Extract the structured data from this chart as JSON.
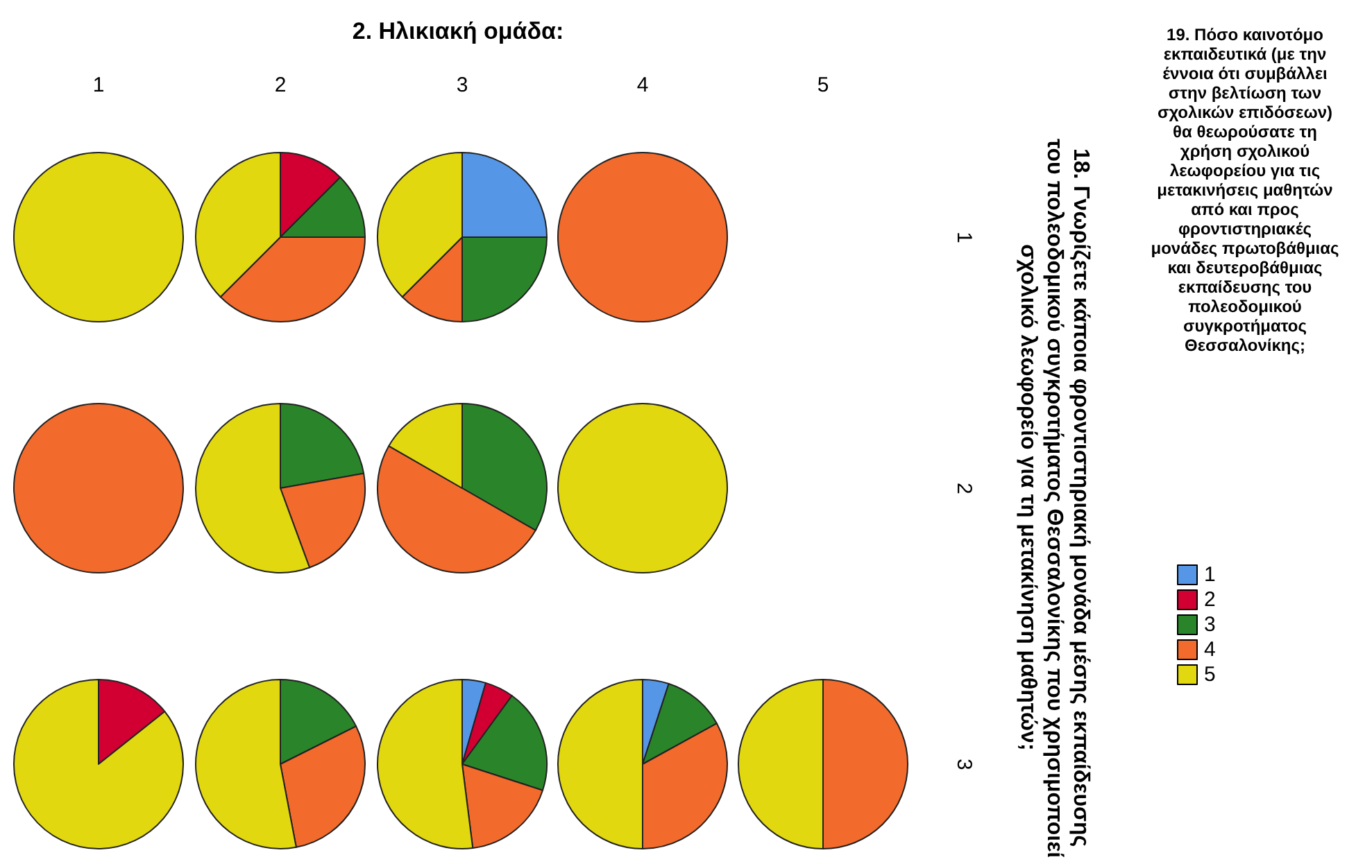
{
  "chart_data": [
    {
      "type": "other",
      "title": "2. Ηλικιακή ομάδα:",
      "y2label": "18. Γνωρίζετε κάποια φροντιστηριακή μονάδα μέσης εκπαίδευσης του πολεοδομικού συγκροτήματος Θεσσαλονίκης που χρησιμοποιεί σχολικό λεωφορείο για τη μετακίνηση μαθητών;"
    },
    {
      "type": "pie",
      "xlabel": "1",
      "values": [
        100
      ],
      "colors": [
        "#e2d810"
      ]
    },
    {
      "type": "pie",
      "xlabel": "2",
      "values": [
        12.5,
        12.5,
        37.5,
        37.5
      ],
      "colors": [
        "#d20032",
        "#2a852a",
        "#f26a2c",
        "#e2d810"
      ]
    },
    {
      "type": "pie",
      "xlabel": "3",
      "values": [
        25,
        25,
        12.5,
        37.5
      ],
      "colors": [
        "#5596e6",
        "#2a852a",
        "#f26a2c",
        "#e2d810"
      ]
    },
    {
      "type": "pie",
      "xlabel": "4",
      "ylabel": "1",
      "values": [
        100
      ],
      "colors": [
        "#f26a2c"
      ]
    },
    {
      "type": "pie",
      "values": [
        100
      ],
      "colors": [
        "#f26a2c"
      ]
    },
    {
      "type": "pie",
      "values": [
        22.2,
        22.2,
        55.6
      ],
      "colors": [
        "#2a852a",
        "#f26a2c",
        "#e2d810"
      ]
    },
    {
      "type": "pie",
      "values": [
        33.3,
        50,
        16.7
      ],
      "colors": [
        "#2a852a",
        "#f26a2c",
        "#e2d810"
      ]
    },
    {
      "type": "pie",
      "ylabel": "2",
      "values": [
        100
      ],
      "colors": [
        "#e2d810"
      ]
    },
    {
      "type": "pie",
      "values": [
        14.3,
        85.7
      ],
      "colors": [
        "#d20032",
        "#e2d810"
      ]
    },
    {
      "type": "pie",
      "values": [
        17.6,
        29.4,
        53
      ],
      "colors": [
        "#2a852a",
        "#f26a2c",
        "#e2d810"
      ]
    },
    {
      "type": "pie",
      "categories": [
        "1",
        "2",
        "3",
        "4",
        "5"
      ],
      "values": [
        4.5,
        5.5,
        20,
        18,
        52
      ],
      "colors": [
        "#5596e6",
        "#d20032",
        "#2a852a",
        "#f26a2c",
        "#e2d810"
      ],
      "legend": "right",
      "legend_title": "19. Πόσο καινοτόμο εκπαιδευτικά (με την έννοια ότι συμβάλλει στην βελτίωση των σχολικών επιδόσεων) θα θεωρούσατε τη χρήση σχολικού λεωφορείου για τις μετακινήσεις μαθητών από και προς φροντιστηριακές μονάδες πρωτοβάθμιας και δευτεροβάθμιας εκπαίδευσης του πολεοδομικού συγκροτήματος Θεσσαλονίκης;"
    },
    {
      "type": "pie",
      "values": [
        5,
        12,
        33,
        50
      ],
      "colors": [
        "#5596e6",
        "#2a852a",
        "#f26a2c",
        "#e2d810"
      ]
    },
    {
      "type": "pie",
      "xlabel": "5",
      "ylabel": "3",
      "values": [
        50,
        50
      ],
      "colors": [
        "#f26a2c",
        "#e2d810"
      ]
    }
  ]
}
